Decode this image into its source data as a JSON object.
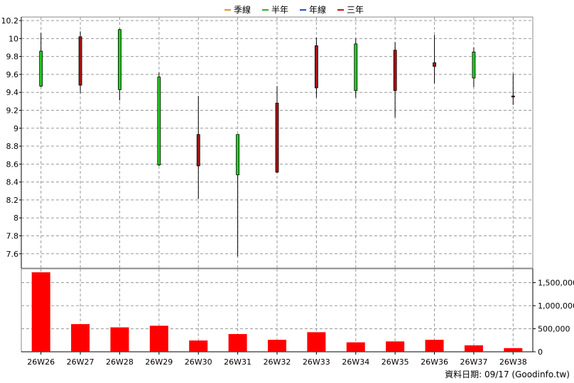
{
  "legend": [
    {
      "label": "季線",
      "color": "#e69138"
    },
    {
      "label": "半年",
      "color": "#22b722"
    },
    {
      "label": "年線",
      "color": "#1f4fd1"
    },
    {
      "label": "三年",
      "color": "#cc1111"
    }
  ],
  "footer": {
    "text": "資料日期: 09/17  (Goodinfo.tw)"
  },
  "chart_data": [
    {
      "type": "candlestick",
      "title": "",
      "categories": [
        "26W26",
        "26W27",
        "26W28",
        "26W29",
        "26W30",
        "26W31",
        "26W32",
        "26W33",
        "26W34",
        "26W35",
        "26W36",
        "26W37",
        "26W38"
      ],
      "ohlc": [
        {
          "open": 9.47,
          "high": 10.06,
          "low": 9.46,
          "close": 9.86
        },
        {
          "open": 10.02,
          "high": 10.08,
          "low": 9.39,
          "close": 9.48
        },
        {
          "open": 9.43,
          "high": 10.11,
          "low": 9.31,
          "close": 10.1
        },
        {
          "open": 8.59,
          "high": 9.62,
          "low": 8.58,
          "close": 9.57
        },
        {
          "open": 8.93,
          "high": 9.36,
          "low": 8.21,
          "close": 8.58
        },
        {
          "open": 8.48,
          "high": 8.93,
          "low": 7.57,
          "close": 8.93
        },
        {
          "open": 9.28,
          "high": 9.47,
          "low": 8.5,
          "close": 8.51
        },
        {
          "open": 9.92,
          "high": 10.01,
          "low": 9.34,
          "close": 9.45
        },
        {
          "open": 9.42,
          "high": 10.0,
          "low": 9.34,
          "close": 9.94
        },
        {
          "open": 9.87,
          "high": 9.96,
          "low": 9.12,
          "close": 9.42
        },
        {
          "open": 9.73,
          "high": 10.04,
          "low": 9.5,
          "close": 9.69
        },
        {
          "open": 9.56,
          "high": 9.9,
          "low": 9.46,
          "close": 9.85
        },
        {
          "open": 9.36,
          "high": 9.61,
          "low": 9.26,
          "close": 9.35
        }
      ],
      "colors": {
        "up": "#22cc22",
        "down": "#aa1111"
      },
      "ylim": [
        7.44,
        10.24
      ],
      "yticks": [
        7.6,
        7.8,
        8,
        8.2,
        8.4,
        8.6,
        8.8,
        9,
        9.2,
        9.4,
        9.6,
        9.8,
        10,
        10.2
      ],
      "ytick_labels": [
        "7.6",
        "7.8",
        "8",
        "8.2",
        "8.4",
        "8.6",
        "8.8",
        "9",
        "9.2",
        "9.4",
        "9.6",
        "9.8",
        "10",
        "10.2"
      ],
      "grid": true
    },
    {
      "type": "bar",
      "categories": [
        "26W26",
        "26W27",
        "26W28",
        "26W29",
        "26W30",
        "26W31",
        "26W32",
        "26W33",
        "26W34",
        "26W35",
        "26W36",
        "26W37",
        "26W38"
      ],
      "values": [
        1725000,
        600000,
        530000,
        565000,
        245000,
        385000,
        260000,
        425000,
        205000,
        225000,
        260000,
        140000,
        80000
      ],
      "color": "#ff0000",
      "ylim": [
        0,
        1800000
      ],
      "yticks": [
        0,
        500000,
        1000000,
        1500000
      ],
      "ytick_labels": [
        "0",
        "500,000",
        "1,000,000",
        "1,500,000"
      ],
      "y_axis_side": "right",
      "grid": true
    }
  ]
}
